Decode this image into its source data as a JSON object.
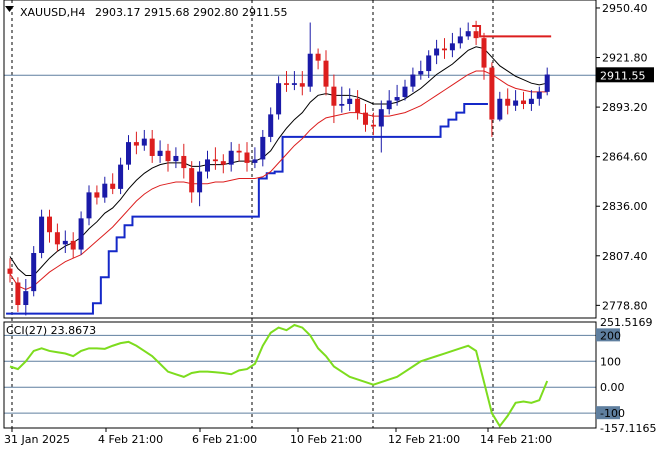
{
  "symbol_info": {
    "symbol": "XAUUSD,H4",
    "ohlc": "2903.17 2915.68 2902.80 2911.55"
  },
  "price_axis": {
    "ticks": [
      "2950.40",
      "2921.80",
      "2893.20",
      "2864.60",
      "2836.00",
      "2807.40",
      "2778.80"
    ],
    "current_price": "2911.55"
  },
  "cci_panel": {
    "label": "CCI(27) 23.8673",
    "ticks": [
      "251.5169",
      "200",
      "100",
      "0.00",
      "-100",
      "-157.1165"
    ]
  },
  "time_axis": {
    "labels": [
      "31 Jan 2025",
      "4 Feb 21:00",
      "6 Feb 21:00",
      "10 Feb 21:00",
      "12 Feb 21:00",
      "14 Feb 21:00"
    ]
  },
  "colors": {
    "bull": "#1a1aa8",
    "bear": "#dc1e1e",
    "ma_fast": "#000000",
    "ma_slow": "#dc1e1e",
    "stop_support": "#1428c8",
    "stop_resistance": "#dc1e1e",
    "cci": "#7ddc1e",
    "grid": "#5f7f9f",
    "price_badge_bg": "#000000",
    "price_badge_fg": "#ffffff"
  },
  "chart_data": {
    "type": "candlestick",
    "title": "XAUUSD,H4",
    "y_range": [
      2771.5,
      2955.0
    ],
    "x_labels": [
      "31 Jan 2025",
      "4 Feb 21:00",
      "6 Feb 21:00",
      "10 Feb 21:00",
      "12 Feb 21:00",
      "14 Feb 21:00"
    ],
    "candles": [
      [
        2800,
        2797,
        2806,
        2792
      ],
      [
        2792,
        2779,
        2795,
        2775
      ],
      [
        2779,
        2787,
        2794,
        2773
      ],
      [
        2787,
        2809,
        2813,
        2784
      ],
      [
        2809,
        2830,
        2834,
        2806
      ],
      [
        2830,
        2821,
        2834,
        2815
      ],
      [
        2821,
        2814,
        2826,
        2810
      ],
      [
        2814,
        2816,
        2822,
        2809
      ],
      [
        2816,
        2811,
        2821,
        2806
      ],
      [
        2811,
        2829,
        2833,
        2808
      ],
      [
        2829,
        2844,
        2848,
        2825
      ],
      [
        2844,
        2841,
        2848,
        2837
      ],
      [
        2841,
        2849,
        2853,
        2838
      ],
      [
        2849,
        2846,
        2855,
        2843
      ],
      [
        2846,
        2860,
        2864,
        2843
      ],
      [
        2860,
        2873,
        2877,
        2857
      ],
      [
        2873,
        2871,
        2879,
        2866
      ],
      [
        2871,
        2875,
        2880,
        2868
      ],
      [
        2875,
        2865,
        2880,
        2861
      ],
      [
        2865,
        2868,
        2874,
        2861
      ],
      [
        2868,
        2862,
        2872,
        2856
      ],
      [
        2862,
        2865,
        2870,
        2858
      ],
      [
        2865,
        2858,
        2872,
        2852
      ],
      [
        2858,
        2844,
        2862,
        2838
      ],
      [
        2844,
        2856,
        2862,
        2836
      ],
      [
        2856,
        2863,
        2868,
        2852
      ],
      [
        2863,
        2862,
        2870,
        2857
      ],
      [
        2862,
        2860,
        2866,
        2855
      ],
      [
        2860,
        2868,
        2873,
        2856
      ],
      [
        2868,
        2867,
        2872,
        2862
      ],
      [
        2867,
        2861,
        2873,
        2856
      ],
      [
        2861,
        2863,
        2870,
        2858
      ],
      [
        2863,
        2876,
        2880,
        2859
      ],
      [
        2876,
        2889,
        2893,
        2873
      ],
      [
        2889,
        2907,
        2911,
        2886
      ],
      [
        2907,
        2906,
        2914,
        2902
      ],
      [
        2906,
        2907,
        2914,
        2903
      ],
      [
        2907,
        2905,
        2914,
        2900
      ],
      [
        2905,
        2924,
        2942,
        2902
      ],
      [
        2924,
        2920,
        2927,
        2915
      ],
      [
        2920,
        2905,
        2926,
        2900
      ],
      [
        2905,
        2894,
        2912,
        2884
      ],
      [
        2894,
        2895,
        2905,
        2890
      ],
      [
        2895,
        2898,
        2904,
        2891
      ],
      [
        2898,
        2890,
        2903,
        2886
      ],
      [
        2890,
        2883,
        2895,
        2879
      ],
      [
        2883,
        2882,
        2890,
        2877
      ],
      [
        2882,
        2892,
        2897,
        2867
      ],
      [
        2892,
        2897,
        2903,
        2889
      ],
      [
        2897,
        2899,
        2906,
        2894
      ],
      [
        2899,
        2905,
        2909,
        2897
      ],
      [
        2905,
        2912,
        2916,
        2902
      ],
      [
        2912,
        2914,
        2920,
        2909
      ],
      [
        2914,
        2923,
        2926,
        2910
      ],
      [
        2923,
        2927,
        2932,
        2918
      ],
      [
        2927,
        2926,
        2933,
        2921
      ],
      [
        2926,
        2930,
        2936,
        2922
      ],
      [
        2930,
        2934,
        2939,
        2927
      ],
      [
        2934,
        2937,
        2942,
        2932
      ],
      [
        2937,
        2933,
        2943,
        2929
      ],
      [
        2933,
        2916,
        2936,
        2909
      ],
      [
        2916,
        2886,
        2919,
        2876
      ],
      [
        2886,
        2898,
        2902,
        2885
      ],
      [
        2898,
        2894,
        2904,
        2889
      ],
      [
        2894,
        2897,
        2903,
        2891
      ],
      [
        2897,
        2895,
        2902,
        2892
      ],
      [
        2895,
        2898,
        2903,
        2891
      ],
      [
        2898,
        2902,
        2905,
        2894
      ],
      [
        2902,
        2912,
        2916,
        2900
      ]
    ],
    "series": [
      {
        "values": [
          2807,
          2800,
          2796,
          2796,
          2801,
          2806,
          2810,
          2813,
          2815,
          2818,
          2823,
          2827,
          2832,
          2835,
          2840,
          2846,
          2851,
          2855,
          2858,
          2860,
          2861,
          2861,
          2861,
          2859,
          2859,
          2860,
          2860,
          2860,
          2861,
          2862,
          2862,
          2862,
          2864,
          2868,
          2875,
          2881,
          2886,
          2890,
          2896,
          2900,
          2901,
          2900,
          2900,
          2900,
          2899,
          2897,
          2895,
          2895,
          2895,
          2896,
          2898,
          2901,
          2904,
          2908,
          2912,
          2915,
          2918,
          2922,
          2926,
          2928,
          2927,
          2922,
          2917,
          2914,
          2911,
          2909,
          2907,
          2906,
          2907
        ]
      },
      {
        "values": [
          2797,
          2790,
          2788,
          2790,
          2794,
          2798,
          2801,
          2804,
          2806,
          2808,
          2812,
          2816,
          2820,
          2824,
          2829,
          2834,
          2839,
          2843,
          2846,
          2848,
          2849,
          2850,
          2850,
          2849,
          2849,
          2849,
          2850,
          2850,
          2851,
          2852,
          2852,
          2852,
          2853,
          2856,
          2861,
          2866,
          2871,
          2875,
          2880,
          2884,
          2887,
          2888,
          2889,
          2890,
          2890,
          2889,
          2888,
          2888,
          2888,
          2889,
          2890,
          2892,
          2894,
          2897,
          2900,
          2903,
          2906,
          2909,
          2912,
          2914,
          2914,
          2912,
          2909,
          2906,
          2904,
          2903,
          2902,
          2902,
          2902
        ]
      }
    ],
    "stop_support": [
      2774,
      2774,
      2774,
      2774,
      2774,
      2774,
      2774,
      2774,
      2774,
      2774,
      2774,
      2780,
      2795,
      2810,
      2818,
      2825,
      2830,
      2830,
      2830,
      2830,
      2830,
      2830,
      2830,
      2830,
      2830,
      2830,
      2830,
      2830,
      2830,
      2830,
      2830,
      2830,
      2852,
      2855,
      2856,
      2876,
      2876,
      2876,
      2876,
      2876,
      2876,
      2876,
      2876,
      2876,
      2876,
      2876,
      2876,
      2876,
      2876,
      2876,
      2876,
      2876,
      2876,
      2876,
      2876,
      2882,
      2886,
      2890,
      2895,
      2895,
      2895,
      null,
      null,
      null,
      null,
      null,
      null,
      null,
      null
    ],
    "stop_resistance": [
      null,
      null,
      null,
      null,
      null,
      null,
      null,
      null,
      null,
      null,
      null,
      null,
      null,
      null,
      null,
      null,
      null,
      null,
      null,
      null,
      null,
      null,
      null,
      null,
      null,
      null,
      null,
      null,
      null,
      null,
      null,
      null,
      null,
      null,
      null,
      null,
      null,
      null,
      null,
      null,
      null,
      null,
      null,
      null,
      null,
      null,
      null,
      null,
      null,
      null,
      null,
      null,
      null,
      null,
      null,
      null,
      null,
      null,
      null,
      2940,
      2934,
      2934,
      2934,
      2934,
      2934,
      2934,
      2934,
      2934,
      2934
    ],
    "cci": {
      "range": [
        -157.1165,
        251.5169
      ],
      "values": [
        80,
        70,
        100,
        140,
        150,
        140,
        135,
        130,
        120,
        140,
        150,
        150,
        148,
        160,
        170,
        175,
        160,
        140,
        120,
        90,
        60,
        50,
        40,
        55,
        60,
        60,
        58,
        55,
        50,
        65,
        70,
        90,
        160,
        210,
        230,
        220,
        240,
        230,
        200,
        150,
        120,
        80,
        60,
        40,
        30,
        20,
        10,
        20,
        30,
        40,
        60,
        80,
        100,
        110,
        120,
        130,
        140,
        150,
        160,
        140,
        20,
        -100,
        -150,
        -110,
        -60,
        -55,
        -60,
        -50,
        24
      ]
    }
  }
}
